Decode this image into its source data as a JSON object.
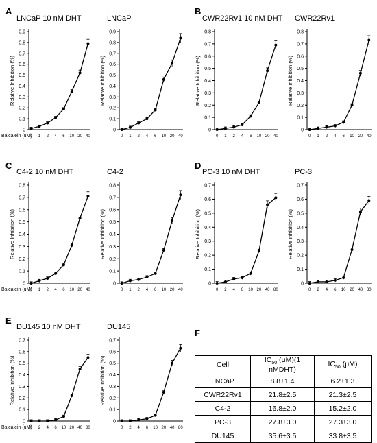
{
  "panels": {
    "A": "A",
    "B": "B",
    "C": "C",
    "D": "D",
    "E": "E",
    "F": "F"
  },
  "xlabel": "Baicalein (uM)",
  "ylabel": "Relative Inhibition (%)",
  "chart_data": [
    {
      "id": "A1",
      "type": "line",
      "title": "LNCaP 10 nM DHT",
      "categories": [
        "0",
        "1",
        "2",
        "4",
        "6",
        "10",
        "20",
        "40"
      ],
      "values": [
        0.01,
        0.03,
        0.06,
        0.11,
        0.19,
        0.35,
        0.52,
        0.79
      ],
      "yticks": [
        "0",
        "0.1",
        "0.2",
        "0.3",
        "0.4",
        "0.5",
        "0.6",
        "0.7",
        "0.8",
        "0.9"
      ],
      "ylim": [
        0,
        0.9
      ]
    },
    {
      "id": "A2",
      "type": "line",
      "title": "LNCaP",
      "categories": [
        "0",
        "1",
        "2",
        "4",
        "6",
        "10",
        "20",
        "40"
      ],
      "values": [
        0.0,
        0.02,
        0.06,
        0.1,
        0.18,
        0.46,
        0.61,
        0.84
      ],
      "yticks": [
        "0",
        "0.1",
        "0.2",
        "0.3",
        "0.4",
        "0.5",
        "0.6",
        "0.7",
        "0.8",
        "0.9"
      ],
      "ylim": [
        0,
        0.9
      ]
    },
    {
      "id": "B1",
      "type": "line",
      "title": "CWR22Rv1 10 nM DHT",
      "categories": [
        "0",
        "1",
        "2",
        "4",
        "6",
        "10",
        "20",
        "40"
      ],
      "values": [
        0.0,
        0.01,
        0.02,
        0.04,
        0.11,
        0.22,
        0.48,
        0.69
      ],
      "yticks": [
        "0",
        "0.1",
        "0.2",
        "0.3",
        "0.4",
        "0.5",
        "0.6",
        "0.7",
        "0.8"
      ],
      "ylim": [
        0,
        0.8
      ]
    },
    {
      "id": "B2",
      "type": "line",
      "title": "CWR22Rv1",
      "categories": [
        "0",
        "1",
        "2",
        "4",
        "6",
        "10",
        "20",
        "40"
      ],
      "values": [
        0.0,
        0.01,
        0.02,
        0.03,
        0.06,
        0.2,
        0.46,
        0.73
      ],
      "yticks": [
        "0",
        "0.1",
        "0.2",
        "0.3",
        "0.4",
        "0.5",
        "0.6",
        "0.7",
        "0.8"
      ],
      "ylim": [
        0,
        0.8
      ]
    },
    {
      "id": "C1",
      "type": "line",
      "title": "C4-2   10 nM DHT",
      "categories": [
        "0",
        "1",
        "2",
        "4",
        "6",
        "10",
        "20",
        "40"
      ],
      "values": [
        0.0,
        0.02,
        0.04,
        0.08,
        0.15,
        0.31,
        0.53,
        0.71
      ],
      "yticks": [
        "0",
        "0.1",
        "0.2",
        "0.3",
        "0.4",
        "0.5",
        "0.6",
        "0.7",
        "0.8"
      ],
      "ylim": [
        0,
        0.8
      ]
    },
    {
      "id": "C2",
      "type": "line",
      "title": "C4-2",
      "categories": [
        "0",
        "1",
        "2",
        "4",
        "6",
        "10",
        "20",
        "40"
      ],
      "values": [
        0.0,
        0.02,
        0.03,
        0.05,
        0.08,
        0.27,
        0.51,
        0.72
      ],
      "yticks": [
        "0",
        "0.1",
        "0.2",
        "0.3",
        "0.4",
        "0.5",
        "0.6",
        "0.7",
        "0.8"
      ],
      "ylim": [
        0,
        0.8
      ]
    },
    {
      "id": "D1",
      "type": "line",
      "title": "PC-3  10 nM DHT",
      "categories": [
        "0",
        "2",
        "4",
        "6",
        "10",
        "20",
        "40",
        "80"
      ],
      "values": [
        0.0,
        0.01,
        0.03,
        0.04,
        0.07,
        0.23,
        0.56,
        0.61
      ],
      "yticks": [
        "0",
        "0.1",
        "0.2",
        "0.3",
        "0.4",
        "0.5",
        "0.6",
        "0.7"
      ],
      "ylim": [
        0,
        0.7
      ]
    },
    {
      "id": "D2",
      "type": "line",
      "title": "PC-3",
      "categories": [
        "0",
        "2",
        "4",
        "6",
        "10",
        "20",
        "40",
        "80"
      ],
      "values": [
        0.0,
        0.01,
        0.01,
        0.02,
        0.04,
        0.24,
        0.51,
        0.59
      ],
      "yticks": [
        "0",
        "0.1",
        "0.2",
        "0.3",
        "0.4",
        "0.5",
        "0.6",
        "0.7"
      ],
      "ylim": [
        0,
        0.7
      ]
    },
    {
      "id": "E1",
      "type": "line",
      "title": "DU145  10 nM DHT",
      "categories": [
        "0",
        "2",
        "4",
        "6",
        "10",
        "20",
        "40",
        "80"
      ],
      "values": [
        0.0,
        0.0,
        0.0,
        0.01,
        0.04,
        0.22,
        0.45,
        0.55
      ],
      "yticks": [
        "0",
        "0.1",
        "0.2",
        "0.3",
        "0.4",
        "0.5",
        "0.6",
        "0.7"
      ],
      "ylim": [
        0,
        0.7
      ]
    },
    {
      "id": "E2",
      "type": "line",
      "title": "DU145",
      "categories": [
        "0",
        "2",
        "4",
        "6",
        "10",
        "20",
        "40",
        "80"
      ],
      "values": [
        0.0,
        0.0,
        0.01,
        0.02,
        0.05,
        0.25,
        0.5,
        0.63
      ],
      "yticks": [
        "0",
        "0.1",
        "0.2",
        "0.3",
        "0.4",
        "0.5",
        "0.6",
        "0.7"
      ],
      "ylim": [
        0,
        0.7
      ]
    }
  ],
  "table": {
    "header": [
      "Cell",
      "IC",
      "50",
      " (μM)(1 nMDHT)",
      "IC",
      "50",
      " (μM)"
    ],
    "rows": [
      [
        "LNCaP",
        "8.8±1.4",
        "6.2±1.3"
      ],
      [
        "CWR22Rv1",
        "21.8±2.5",
        "21.3±2.5"
      ],
      [
        "C4-2",
        "16.8±2.0",
        "15.2±2.0"
      ],
      [
        "PC-3",
        "27.8±3.0",
        "27.3±3.0"
      ],
      [
        "DU145",
        "35.6±3.5",
        "33.8±3.5"
      ]
    ]
  }
}
